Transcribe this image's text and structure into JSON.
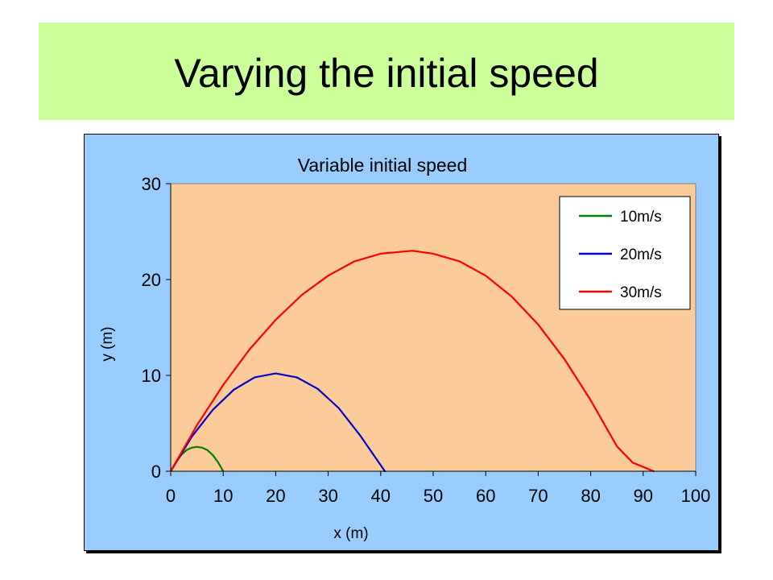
{
  "slide": {
    "title": "Varying the initial speed"
  },
  "colors": {
    "title_band": "#ccff99",
    "chart_background": "#99ccff",
    "plot_area": "#fbcb99"
  },
  "chart_data": {
    "type": "line",
    "title": "Variable initial speed",
    "xlabel": "x (m)",
    "ylabel": "y (m)",
    "xlim": [
      0,
      100
    ],
    "ylim": [
      0,
      30
    ],
    "xticks": [
      0,
      10,
      20,
      30,
      40,
      50,
      60,
      70,
      80,
      90,
      100
    ],
    "yticks": [
      0,
      10,
      20,
      30
    ],
    "grid": false,
    "legend_position": "top-right",
    "series": [
      {
        "name": "10m/s",
        "color": "#008000",
        "x": [
          0,
          1,
          2,
          3,
          4,
          5,
          6,
          7,
          8,
          9,
          10
        ],
        "y": [
          0,
          0.95,
          1.7,
          2.2,
          2.45,
          2.55,
          2.45,
          2.2,
          1.7,
          0.95,
          0
        ]
      },
      {
        "name": "20m/s",
        "color": "#0000cc",
        "x": [
          0,
          4,
          8,
          12,
          16,
          20,
          24,
          28,
          32,
          36,
          40.8
        ],
        "y": [
          0,
          3.6,
          6.4,
          8.5,
          9.8,
          10.2,
          9.8,
          8.6,
          6.6,
          3.8,
          0
        ]
      },
      {
        "name": "30m/s",
        "color": "#ff0000",
        "x": [
          0,
          5,
          10,
          15,
          20,
          25,
          30,
          35,
          40,
          46,
          50,
          55,
          60,
          65,
          70,
          75,
          80,
          85,
          88,
          92
        ],
        "y": [
          0,
          4.8,
          9.0,
          12.7,
          15.8,
          18.4,
          20.4,
          21.9,
          22.7,
          23.0,
          22.7,
          21.9,
          20.4,
          18.2,
          15.3,
          11.7,
          7.4,
          2.6,
          0.9,
          0
        ]
      }
    ]
  }
}
